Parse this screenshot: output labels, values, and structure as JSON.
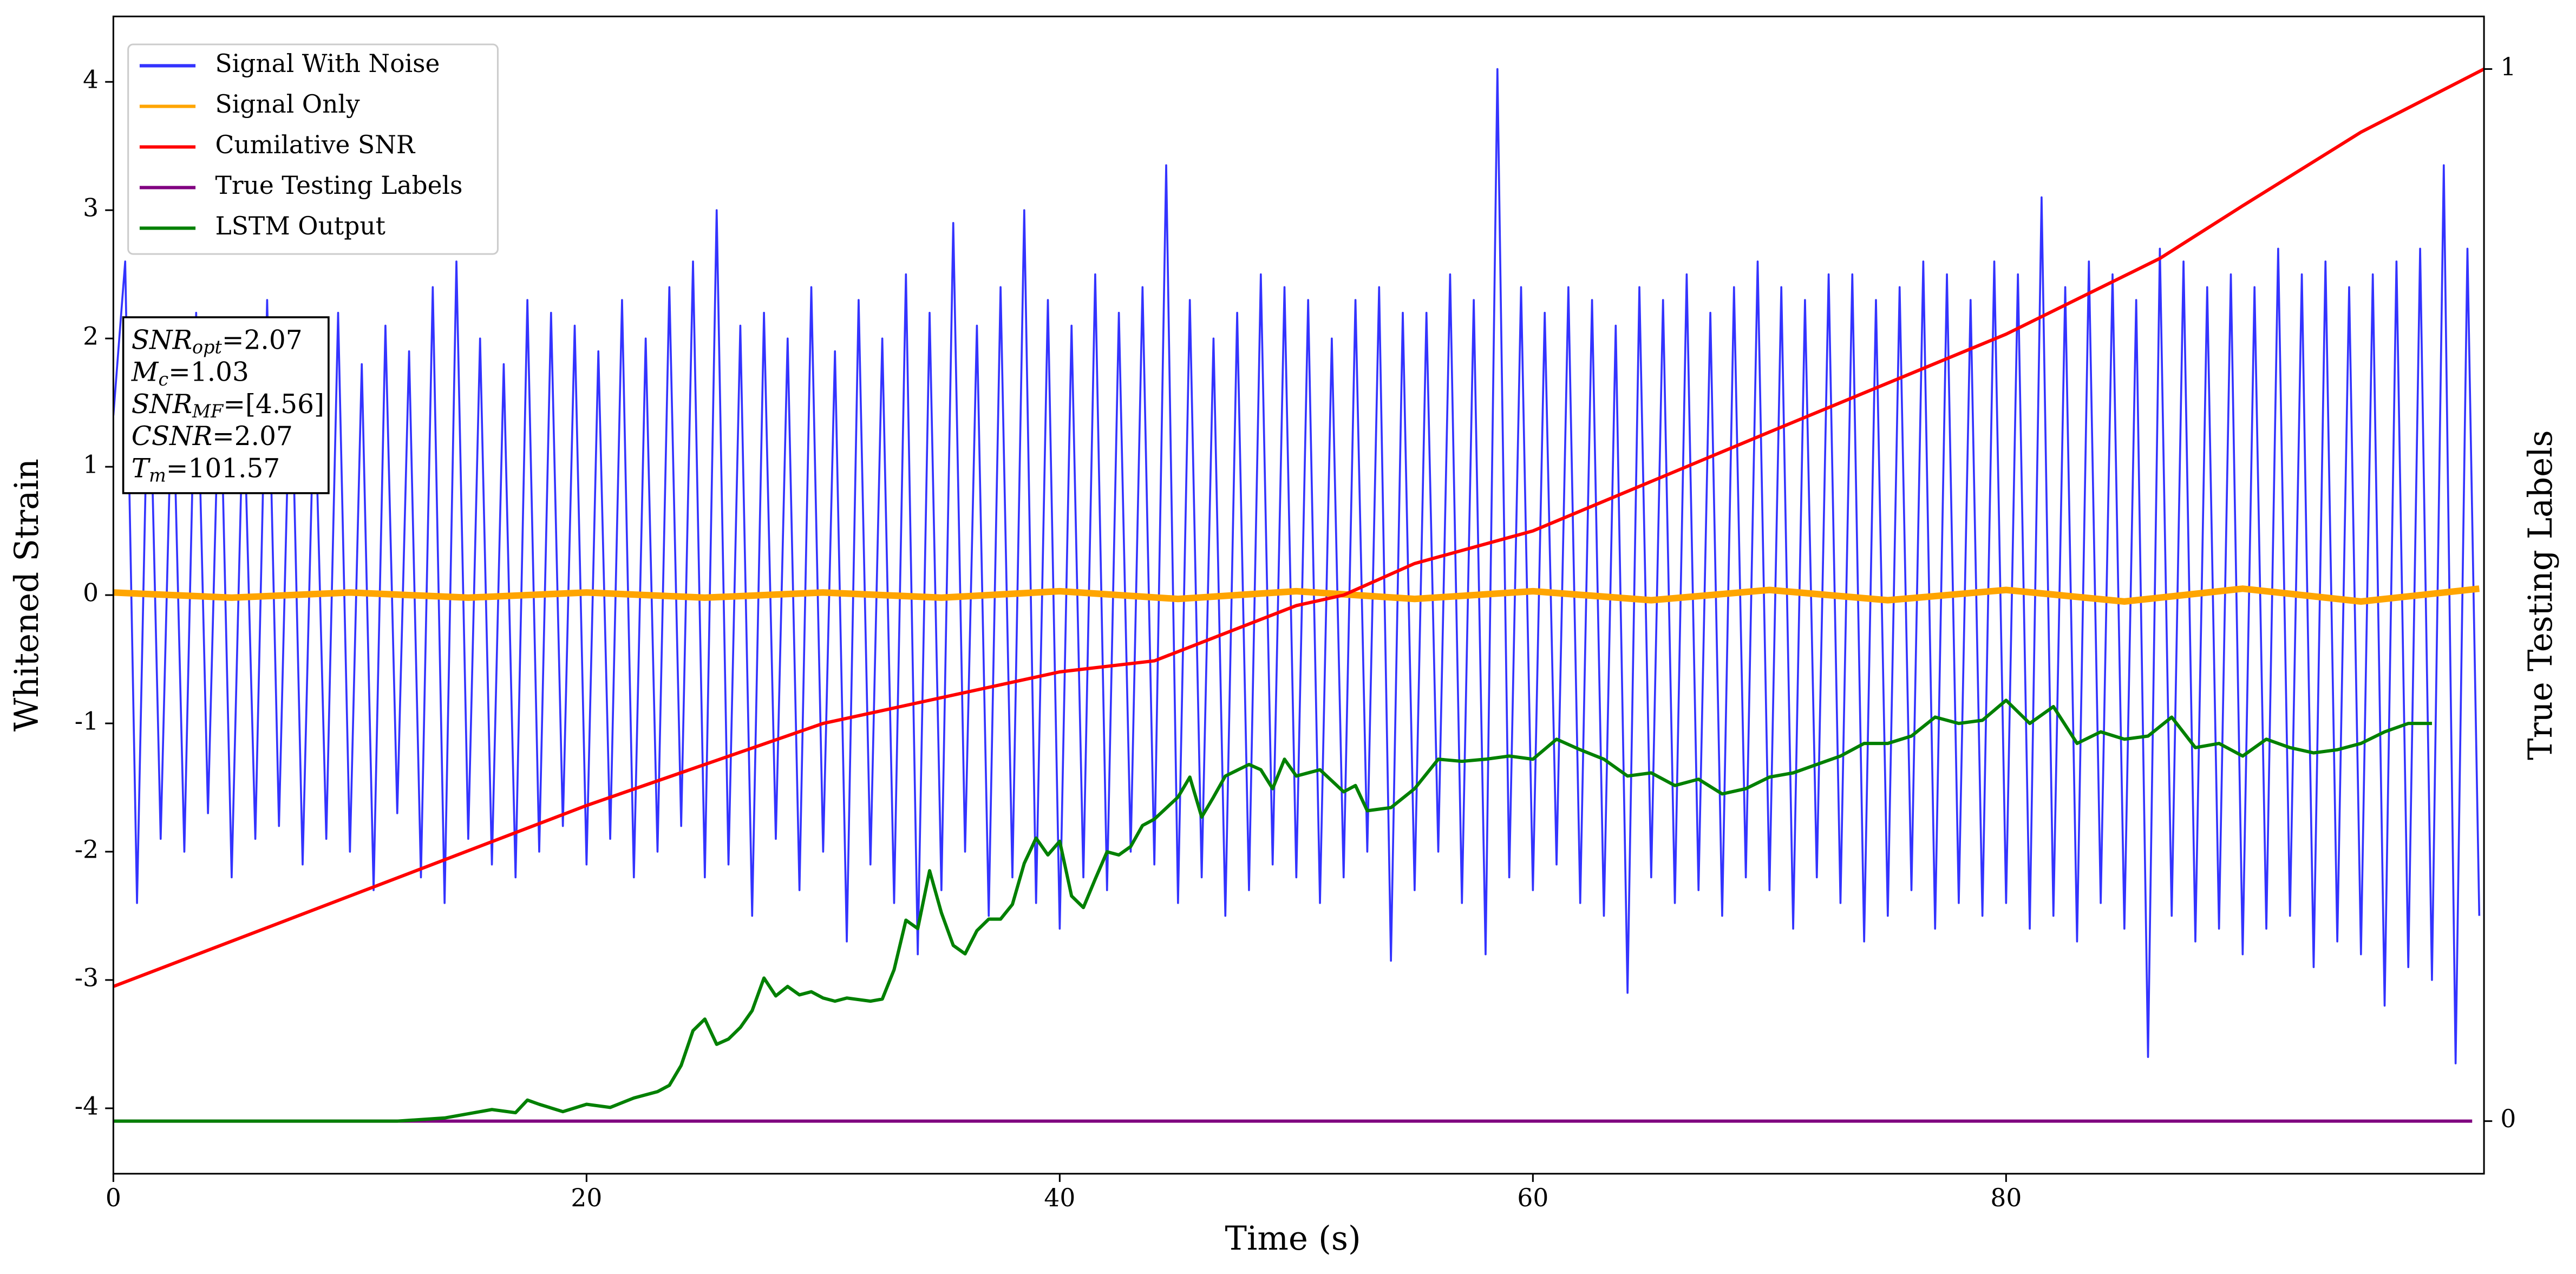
{
  "chart_data": {
    "type": "line",
    "xlabel": "Time (s)",
    "ylabel": "Whitened Strain",
    "y2label": "True Testing Labels",
    "xlim": [
      0,
      100.2
    ],
    "ylim": [
      -4.51,
      4.51
    ],
    "y2lim": [
      -0.05,
      1.05
    ],
    "xticks": [
      0,
      20,
      40,
      60,
      80
    ],
    "yticks": [
      -4,
      -3,
      -2,
      -1,
      0,
      1,
      2,
      3,
      4
    ],
    "y2ticks": [
      0,
      1
    ],
    "grid": false,
    "legend": "upper left",
    "series": [
      {
        "name": "Signal With Noise",
        "color": "#3333ff",
        "axis": "y",
        "x": [
          0,
          0.5,
          1,
          1.5,
          2,
          2.5,
          3,
          3.5,
          4,
          4.5,
          5,
          5.5,
          6,
          6.5,
          7,
          7.5,
          8,
          8.5,
          9,
          9.5,
          10,
          10.5,
          11,
          11.5,
          12,
          12.5,
          13,
          13.5,
          14,
          14.5,
          15,
          15.5,
          16,
          16.5,
          17,
          17.5,
          18,
          18.5,
          19,
          19.5,
          20,
          20.5,
          21,
          21.5,
          22,
          22.5,
          23,
          23.5,
          24,
          24.5,
          25,
          25.5,
          26,
          26.5,
          27,
          27.5,
          28,
          28.5,
          29,
          29.5,
          30,
          30.5,
          31,
          31.5,
          32,
          32.5,
          33,
          33.5,
          34,
          34.5,
          35,
          35.5,
          36,
          36.5,
          37,
          37.5,
          38,
          38.5,
          39,
          39.5,
          40,
          40.5,
          41,
          41.5,
          42,
          42.5,
          43,
          43.5,
          44,
          44.5,
          45,
          45.5,
          46,
          46.5,
          47,
          47.5,
          48,
          48.5,
          49,
          49.5,
          50,
          50.5,
          51,
          51.5,
          52,
          52.5,
          53,
          53.5,
          54,
          54.5,
          55,
          55.5,
          56,
          56.5,
          57,
          57.5,
          58,
          58.5,
          59,
          59.5,
          60,
          60.5,
          61,
          61.5,
          62,
          62.5,
          63,
          63.5,
          64,
          64.5,
          65,
          65.5,
          66,
          66.5,
          67,
          67.5,
          68,
          68.5,
          69,
          69.5,
          70,
          70.5,
          71,
          71.5,
          72,
          72.5,
          73,
          73.5,
          74,
          74.5,
          75,
          75.5,
          76,
          76.5,
          77,
          77.5,
          78,
          78.5,
          79,
          79.5,
          80,
          80.5,
          81,
          81.5,
          82,
          82.5,
          83,
          83.5,
          84,
          84.5,
          85,
          85.5,
          86,
          86.5,
          87,
          87.5,
          88,
          88.5,
          89,
          89.5,
          90,
          90.5,
          91,
          91.5,
          92,
          92.5,
          93,
          93.5,
          94,
          94.5,
          95,
          95.5,
          96,
          96.5,
          97,
          97.5,
          98,
          98.5,
          99,
          99.5,
          100
        ],
        "values": [
          1.4,
          2.6,
          -2.4,
          2.1,
          -1.9,
          1.8,
          -2.0,
          2.2,
          -1.7,
          1.9,
          -2.2,
          1.6,
          -1.9,
          2.3,
          -1.8,
          2.0,
          -2.1,
          1.7,
          -1.9,
          2.2,
          -2.0,
          1.8,
          -2.3,
          2.1,
          -1.7,
          1.9,
          -2.2,
          2.4,
          -2.4,
          2.6,
          -1.9,
          2.0,
          -2.1,
          1.8,
          -2.2,
          2.3,
          -2.0,
          2.2,
          -1.8,
          2.1,
          -2.1,
          1.9,
          -1.9,
          2.3,
          -2.2,
          2.0,
          -2.0,
          2.4,
          -1.8,
          2.6,
          -2.2,
          3.0,
          -2.1,
          2.1,
          -2.5,
          2.2,
          -1.9,
          2.0,
          -2.3,
          2.4,
          -2.0,
          1.9,
          -2.7,
          2.3,
          -2.1,
          2.0,
          -2.4,
          2.5,
          -2.8,
          2.2,
          -2.3,
          2.9,
          -2.0,
          2.1,
          -2.5,
          2.4,
          -2.2,
          3.0,
          -2.4,
          2.3,
          -2.6,
          2.1,
          -2.2,
          2.5,
          -2.3,
          2.2,
          -2.0,
          2.4,
          -2.1,
          3.35,
          -2.4,
          2.3,
          -2.2,
          2.0,
          -2.5,
          2.2,
          -2.3,
          2.5,
          -2.1,
          2.4,
          -2.2,
          2.3,
          -2.4,
          2.0,
          -2.2,
          2.3,
          -2.0,
          2.4,
          -2.85,
          2.2,
          -2.3,
          2.2,
          -2.0,
          2.5,
          -2.4,
          2.3,
          -2.8,
          4.1,
          -2.2,
          2.4,
          -2.3,
          2.2,
          -2.1,
          2.4,
          -2.4,
          2.3,
          -2.5,
          2.1,
          -3.1,
          2.4,
          -2.2,
          2.3,
          -2.4,
          2.5,
          -2.3,
          2.2,
          -2.5,
          2.4,
          -2.2,
          2.6,
          -2.3,
          2.4,
          -2.6,
          2.3,
          -2.2,
          2.5,
          -2.4,
          2.5,
          -2.7,
          2.3,
          -2.5,
          2.4,
          -2.3,
          2.6,
          -2.6,
          2.5,
          -2.4,
          2.3,
          -2.5,
          2.6,
          -2.4,
          2.5,
          -2.6,
          3.1,
          -2.5,
          2.4,
          -2.7,
          2.6,
          -2.4,
          2.5,
          -2.6,
          2.3,
          -3.6,
          2.7,
          -2.5,
          2.6,
          -2.7,
          2.4,
          -2.6,
          2.5,
          -2.8,
          2.4,
          -2.6,
          2.7,
          -2.5,
          2.5,
          -2.9,
          2.6,
          -2.7,
          2.4,
          -2.8,
          2.5,
          -3.2,
          2.6,
          -2.9,
          2.7,
          -3.0,
          3.35,
          -3.65,
          2.7,
          -2.5
        ]
      },
      {
        "name": "Signal Only",
        "color": "#ffa500",
        "axis": "y",
        "x": [
          0,
          5,
          10,
          15,
          20,
          25,
          30,
          35,
          40,
          45,
          50,
          55,
          60,
          65,
          70,
          75,
          80,
          85,
          90,
          95,
          100
        ],
        "values": [
          0.02,
          -0.02,
          0.02,
          -0.02,
          0.02,
          -0.02,
          0.02,
          -0.02,
          0.03,
          -0.03,
          0.03,
          -0.03,
          0.03,
          -0.04,
          0.04,
          -0.04,
          0.04,
          -0.05,
          0.05,
          -0.05,
          0.05
        ]
      },
      {
        "name": "Cumilative SNR",
        "color": "#ff0000",
        "axis": "y2",
        "x": [
          0,
          10,
          20,
          30,
          40,
          44,
          50,
          52,
          55,
          60,
          70,
          80,
          86.5,
          90,
          95,
          100.2
        ],
        "values": [
          0.128,
          0.214,
          0.3,
          0.378,
          0.427,
          0.4375,
          0.49,
          0.5,
          0.53,
          0.561,
          0.655,
          0.748,
          0.82,
          0.87,
          0.94,
          1.0
        ]
      },
      {
        "name": "True Testing Labels",
        "color": "#800080",
        "axis": "y2",
        "x": [
          0,
          99.7
        ],
        "values": [
          0,
          0
        ]
      },
      {
        "name": "LSTM Output",
        "color": "#008000",
        "axis": "y2",
        "x": [
          0,
          12,
          14,
          16,
          17,
          17.5,
          18,
          19,
          20,
          21,
          22,
          23,
          23.5,
          24,
          24.5,
          25,
          25.5,
          26,
          26.5,
          27,
          27.5,
          28,
          28.5,
          29,
          29.5,
          30,
          30.5,
          31,
          32,
          32.5,
          33,
          33.5,
          34,
          34.5,
          35,
          35.5,
          36,
          36.5,
          37,
          37.5,
          38,
          38.5,
          39,
          39.5,
          40,
          40.5,
          41,
          41.5,
          42,
          42.5,
          43,
          43.5,
          44,
          45,
          45.5,
          46,
          46.5,
          47,
          48,
          48.5,
          49,
          49.5,
          50,
          51,
          52,
          52.5,
          53,
          54,
          55,
          56,
          57,
          58,
          59,
          60,
          61,
          62,
          63,
          64,
          65,
          66,
          67,
          68,
          69,
          70,
          71,
          72,
          73,
          74,
          75,
          76,
          77,
          78,
          79,
          80,
          81,
          82,
          83,
          84,
          85,
          86,
          87,
          88,
          89,
          90,
          91,
          92,
          93,
          94,
          95,
          96,
          97,
          98
        ],
        "values": [
          0,
          0,
          0.003,
          0.011,
          0.008,
          0.02,
          0.016,
          0.009,
          0.016,
          0.013,
          0.022,
          0.028,
          0.034,
          0.053,
          0.086,
          0.097,
          0.073,
          0.078,
          0.089,
          0.105,
          0.136,
          0.119,
          0.128,
          0.12,
          0.123,
          0.117,
          0.114,
          0.117,
          0.114,
          0.116,
          0.144,
          0.191,
          0.183,
          0.238,
          0.198,
          0.167,
          0.159,
          0.181,
          0.192,
          0.192,
          0.206,
          0.245,
          0.269,
          0.253,
          0.266,
          0.214,
          0.203,
          0.23,
          0.256,
          0.253,
          0.261,
          0.281,
          0.287,
          0.308,
          0.327,
          0.289,
          0.308,
          0.328,
          0.339,
          0.334,
          0.316,
          0.344,
          0.328,
          0.334,
          0.313,
          0.319,
          0.295,
          0.298,
          0.316,
          0.344,
          0.342,
          0.344,
          0.347,
          0.344,
          0.363,
          0.353,
          0.344,
          0.328,
          0.331,
          0.319,
          0.325,
          0.311,
          0.316,
          0.327,
          0.331,
          0.339,
          0.347,
          0.359,
          0.359,
          0.366,
          0.384,
          0.378,
          0.381,
          0.4,
          0.378,
          0.394,
          0.359,
          0.37,
          0.363,
          0.366,
          0.384,
          0.355,
          0.359,
          0.347,
          0.363,
          0.355,
          0.35,
          0.353,
          0.359,
          0.37,
          0.378,
          0.378
        ]
      }
    ],
    "annotations": [
      {
        "label": "SNR",
        "subscript": "opt",
        "suffix": "=2.07"
      },
      {
        "label": "M",
        "subscript": "c",
        "suffix": "=1.03"
      },
      {
        "label": "SNR",
        "subscript": "MF",
        "suffix": "=[4.56]"
      },
      {
        "label": "CSNR",
        "suffix": "=2.07"
      },
      {
        "label": "T",
        "subscript": "m",
        "suffix": "=101.57"
      }
    ]
  }
}
